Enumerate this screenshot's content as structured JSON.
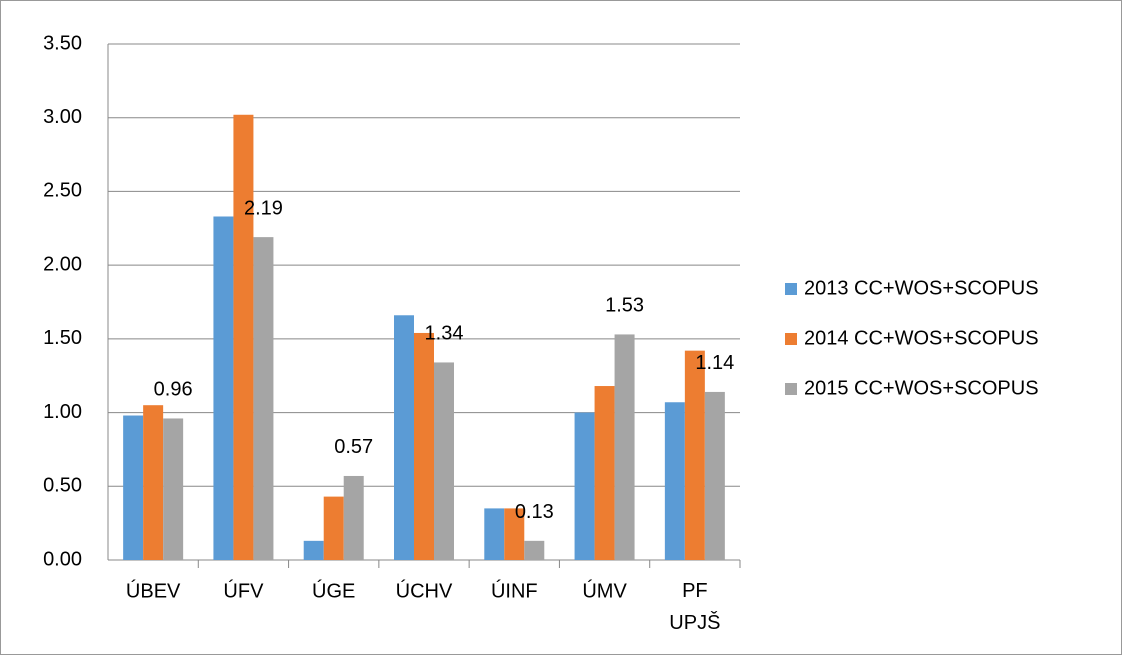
{
  "chart_data": {
    "type": "bar",
    "categories": [
      "ÚBEV",
      "ÚFV",
      "ÚGE",
      "ÚCHV",
      "ÚINF",
      "ÚMV",
      "PF UPJŠ"
    ],
    "series": [
      {
        "name": "2013 CC+WOS+SCOPUS",
        "color": "#5b9bd5",
        "values": [
          0.98,
          2.33,
          0.13,
          1.66,
          0.35,
          1.0,
          1.07
        ]
      },
      {
        "name": "2014 CC+WOS+SCOPUS",
        "color": "#ed7d31",
        "values": [
          1.05,
          3.02,
          0.43,
          1.54,
          0.35,
          1.18,
          1.42
        ]
      },
      {
        "name": "2015 CC+WOS+SCOPUS",
        "color": "#a5a5a5",
        "values": [
          0.96,
          2.19,
          0.57,
          1.34,
          0.13,
          1.53,
          1.14
        ],
        "data_labels": true
      }
    ],
    "ylim": [
      0,
      3.5
    ],
    "yticks": [
      {
        "value": 0,
        "label": "0.00"
      },
      {
        "value": 0.5,
        "label": "0.50"
      },
      {
        "value": 1,
        "label": "1.00"
      },
      {
        "value": 1.5,
        "label": "1.50"
      },
      {
        "value": 2,
        "label": "2.00"
      },
      {
        "value": 2.5,
        "label": "2.50"
      },
      {
        "value": 3,
        "label": "3.00"
      },
      {
        "value": 3.5,
        "label": "3.50"
      }
    ],
    "grid": true,
    "legend": "right"
  }
}
